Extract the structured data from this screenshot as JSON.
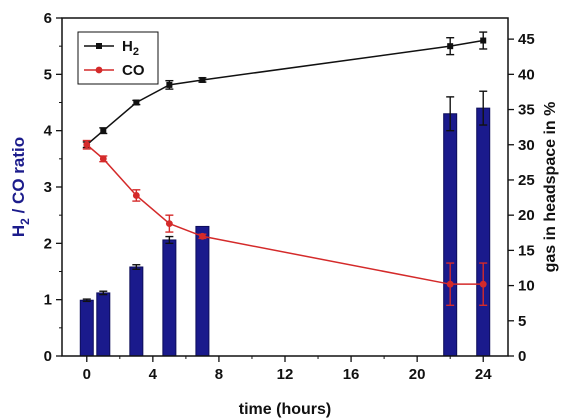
{
  "chart_data": {
    "type": "bar+line",
    "xlabel": "time (hours)",
    "ylabel_left_main": "H",
    "ylabel_left_sub": "2",
    "ylabel_left_rest": " / CO ratio",
    "ylabel_right": "gas in headspace in %",
    "xlim": [
      -1.5,
      25.5
    ],
    "xticks": [
      0,
      4,
      8,
      12,
      16,
      20,
      24
    ],
    "ylim_left": [
      0,
      6
    ],
    "yticks_left": [
      0,
      1,
      2,
      3,
      4,
      5,
      6
    ],
    "ylim_right": [
      0,
      48
    ],
    "yticks_right": [
      0,
      5,
      10,
      15,
      20,
      25,
      30,
      35,
      40,
      45
    ],
    "bars": {
      "name": "H2 / CO ratio",
      "axis": "left",
      "color": "#1a1a8c",
      "x": [
        0,
        1,
        3,
        5,
        7,
        22,
        24
      ],
      "values": [
        0.99,
        1.12,
        1.58,
        2.06,
        2.3,
        4.3,
        4.4
      ],
      "errors": [
        0.02,
        0.03,
        0.04,
        0.06,
        0.0,
        0.3,
        0.3
      ]
    },
    "series": [
      {
        "name": "H",
        "name_sub": "2",
        "axis": "right",
        "color": "#111111",
        "marker": "square",
        "x": [
          0,
          1,
          3,
          5,
          7,
          22,
          24
        ],
        "values": [
          30.0,
          32.0,
          36.0,
          38.5,
          39.2,
          44.0,
          44.8
        ],
        "errors": [
          0.4,
          0.4,
          0.3,
          0.6,
          0.3,
          1.2,
          1.2
        ]
      },
      {
        "name": "CO",
        "axis": "right",
        "color": "#d42a2a",
        "marker": "circle",
        "x": [
          0,
          1,
          3,
          5,
          7,
          22,
          24
        ],
        "values": [
          30.0,
          28.0,
          22.8,
          18.8,
          17.0,
          10.2,
          10.2
        ],
        "errors": [
          0.6,
          0.4,
          0.8,
          1.2,
          0.3,
          3.0,
          3.0
        ]
      }
    ],
    "legend": "top-left",
    "grid": false
  }
}
